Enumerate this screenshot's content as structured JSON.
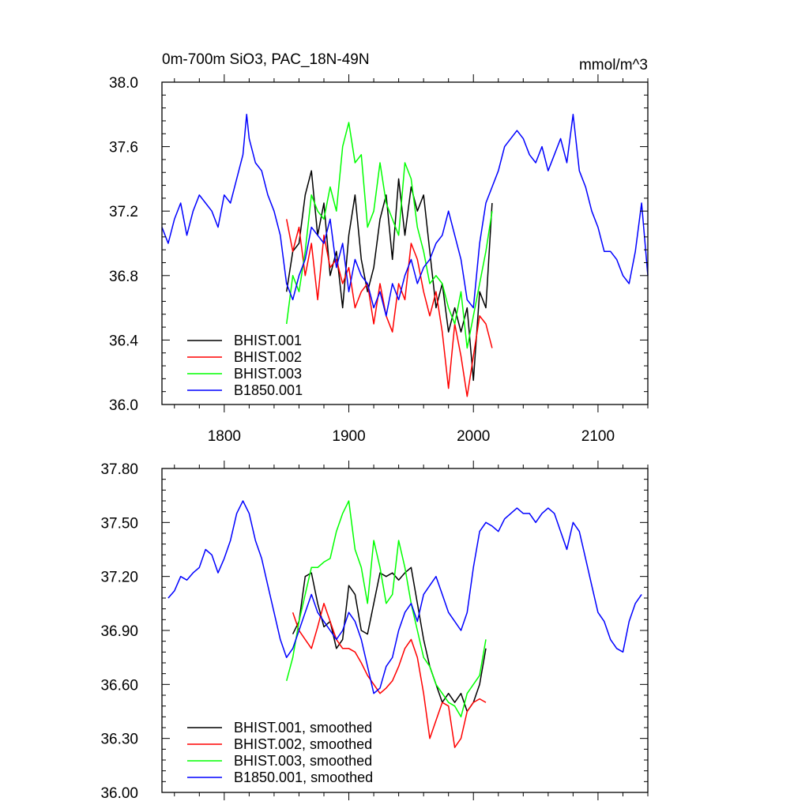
{
  "chart_data": [
    {
      "type": "line",
      "title": "0m-700m SiO3, PAC_18N-49N",
      "units_label": "mmol/m^3",
      "xlabel": "",
      "ylabel": "",
      "xlim": [
        1750,
        2140
      ],
      "ylim": [
        36.0,
        38.0
      ],
      "xticks": [
        1800,
        1900,
        2000,
        2100
      ],
      "xtick_labels": [
        "1800",
        "1900",
        "2000",
        "2100"
      ],
      "yticks": [
        36.0,
        36.4,
        36.8,
        37.2,
        37.6,
        38.0
      ],
      "ytick_labels": [
        "36.0",
        "36.4",
        "36.8",
        "37.2",
        "37.6",
        "38.0"
      ],
      "legend": "bottom-left",
      "series": [
        {
          "name": "BHIST.001",
          "color": "#000000",
          "x": [
            1850,
            1855,
            1860,
            1865,
            1870,
            1875,
            1880,
            1885,
            1890,
            1895,
            1900,
            1905,
            1910,
            1915,
            1920,
            1925,
            1930,
            1935,
            1940,
            1945,
            1950,
            1955,
            1960,
            1965,
            1970,
            1975,
            1980,
            1985,
            1990,
            1995,
            2000,
            2005,
            2010,
            2015
          ],
          "y": [
            36.7,
            36.95,
            37.0,
            37.3,
            37.45,
            37.05,
            37.25,
            36.8,
            36.95,
            36.6,
            37.05,
            37.3,
            36.9,
            36.7,
            36.85,
            37.15,
            37.3,
            36.9,
            37.4,
            37.05,
            37.35,
            37.2,
            37.3,
            36.95,
            36.6,
            36.75,
            36.45,
            36.6,
            36.45,
            36.6,
            36.15,
            36.7,
            36.6,
            37.25
          ]
        },
        {
          "name": "BHIST.002",
          "color": "#ff0000",
          "x": [
            1850,
            1855,
            1860,
            1865,
            1870,
            1875,
            1880,
            1885,
            1890,
            1895,
            1900,
            1905,
            1910,
            1915,
            1920,
            1925,
            1930,
            1935,
            1940,
            1945,
            1950,
            1955,
            1960,
            1965,
            1970,
            1975,
            1980,
            1985,
            1990,
            1995,
            2000,
            2005,
            2010,
            2015
          ],
          "y": [
            37.15,
            36.95,
            37.1,
            36.8,
            37.0,
            36.65,
            37.05,
            36.85,
            36.9,
            36.75,
            36.85,
            36.6,
            36.7,
            36.75,
            36.5,
            36.75,
            36.55,
            36.45,
            36.75,
            36.65,
            37.0,
            36.9,
            36.7,
            36.55,
            36.7,
            36.45,
            36.1,
            36.5,
            36.3,
            36.05,
            36.3,
            36.55,
            36.5,
            36.35
          ]
        },
        {
          "name": "BHIST.003",
          "color": "#00ff00",
          "x": [
            1850,
            1855,
            1860,
            1865,
            1870,
            1875,
            1880,
            1885,
            1890,
            1895,
            1900,
            1905,
            1910,
            1915,
            1920,
            1925,
            1930,
            1935,
            1940,
            1945,
            1950,
            1955,
            1960,
            1965,
            1970,
            1975,
            1980,
            1985,
            1990,
            1995,
            2000,
            2005,
            2010,
            2015
          ],
          "y": [
            36.5,
            36.8,
            36.7,
            36.95,
            37.3,
            37.2,
            37.15,
            37.35,
            37.2,
            37.6,
            37.75,
            37.5,
            37.55,
            37.1,
            37.2,
            37.5,
            37.25,
            37.15,
            37.05,
            37.5,
            37.4,
            37.1,
            36.95,
            36.75,
            36.8,
            36.75,
            36.6,
            36.5,
            36.7,
            36.35,
            36.55,
            36.75,
            36.95,
            37.2
          ]
        },
        {
          "name": "B1850.001",
          "color": "#0000ff",
          "x": [
            1750,
            1755,
            1760,
            1765,
            1770,
            1775,
            1780,
            1785,
            1790,
            1795,
            1800,
            1805,
            1810,
            1815,
            1818,
            1820,
            1825,
            1830,
            1835,
            1840,
            1845,
            1850,
            1855,
            1860,
            1865,
            1870,
            1875,
            1880,
            1885,
            1890,
            1895,
            1900,
            1905,
            1910,
            1915,
            1920,
            1925,
            1930,
            1935,
            1940,
            1945,
            1950,
            1955,
            1960,
            1965,
            1970,
            1975,
            1980,
            1985,
            1990,
            1995,
            2000,
            2005,
            2010,
            2015,
            2020,
            2025,
            2030,
            2035,
            2040,
            2045,
            2050,
            2055,
            2060,
            2065,
            2070,
            2075,
            2080,
            2085,
            2090,
            2095,
            2100,
            2105,
            2110,
            2115,
            2120,
            2125,
            2130,
            2135,
            2140
          ],
          "y": [
            37.1,
            37.0,
            37.15,
            37.25,
            37.05,
            37.2,
            37.3,
            37.25,
            37.2,
            37.1,
            37.3,
            37.25,
            37.4,
            37.55,
            37.8,
            37.65,
            37.5,
            37.45,
            37.3,
            37.2,
            37.05,
            36.75,
            36.65,
            36.8,
            36.9,
            37.1,
            37.05,
            37.0,
            37.15,
            36.85,
            37.0,
            36.7,
            36.9,
            36.8,
            36.75,
            36.6,
            36.7,
            36.55,
            36.75,
            36.65,
            36.8,
            36.9,
            36.75,
            36.85,
            36.9,
            37.0,
            37.05,
            37.2,
            37.05,
            36.9,
            36.65,
            36.6,
            37.0,
            37.25,
            37.35,
            37.45,
            37.6,
            37.65,
            37.7,
            37.65,
            37.55,
            37.5,
            37.6,
            37.45,
            37.55,
            37.65,
            37.5,
            37.8,
            37.45,
            37.35,
            37.2,
            37.1,
            36.95,
            36.95,
            36.9,
            36.8,
            36.75,
            36.95,
            37.25,
            36.8
          ]
        }
      ]
    },
    {
      "type": "line",
      "title": "",
      "xlabel": "",
      "ylabel": "",
      "xlim": [
        1750,
        2140
      ],
      "ylim": [
        36.0,
        37.8
      ],
      "xticks": [
        1800,
        1900,
        2000,
        2100
      ],
      "yticks": [
        36.0,
        36.3,
        36.6,
        36.9,
        37.2,
        37.5,
        37.8
      ],
      "ytick_labels": [
        "36.00",
        "36.30",
        "36.60",
        "36.90",
        "37.20",
        "37.50",
        "37.80"
      ],
      "legend": "bottom-left",
      "series": [
        {
          "name": "BHIST.001, smoothed",
          "color": "#000000",
          "x": [
            1855,
            1860,
            1865,
            1870,
            1875,
            1880,
            1885,
            1890,
            1895,
            1900,
            1905,
            1910,
            1915,
            1920,
            1925,
            1930,
            1935,
            1940,
            1945,
            1950,
            1955,
            1960,
            1965,
            1970,
            1975,
            1980,
            1985,
            1990,
            1995,
            2000,
            2005,
            2010
          ],
          "y": [
            36.88,
            36.95,
            37.2,
            37.22,
            37.05,
            36.92,
            36.95,
            36.8,
            36.85,
            37.15,
            37.1,
            36.9,
            36.88,
            37.05,
            37.22,
            37.2,
            37.22,
            37.18,
            37.22,
            37.25,
            37.05,
            36.85,
            36.7,
            36.6,
            36.5,
            36.55,
            36.5,
            36.55,
            36.45,
            36.5,
            36.6,
            36.8
          ]
        },
        {
          "name": "BHIST.002, smoothed",
          "color": "#ff0000",
          "x": [
            1855,
            1860,
            1865,
            1870,
            1875,
            1880,
            1885,
            1890,
            1895,
            1900,
            1905,
            1910,
            1915,
            1920,
            1925,
            1930,
            1935,
            1940,
            1945,
            1950,
            1955,
            1960,
            1965,
            1970,
            1975,
            1980,
            1985,
            1990,
            1995,
            2000,
            2005,
            2010
          ],
          "y": [
            37.0,
            36.9,
            36.85,
            36.8,
            36.92,
            37.05,
            36.95,
            36.85,
            36.8,
            36.8,
            36.78,
            36.72,
            36.65,
            36.6,
            36.55,
            36.58,
            36.62,
            36.7,
            36.8,
            36.85,
            36.75,
            36.55,
            36.3,
            36.4,
            36.5,
            36.48,
            36.25,
            36.3,
            36.45,
            36.5,
            36.52,
            36.5
          ]
        },
        {
          "name": "BHIST.003, smoothed",
          "color": "#00ff00",
          "x": [
            1850,
            1855,
            1860,
            1865,
            1870,
            1875,
            1880,
            1885,
            1890,
            1895,
            1900,
            1905,
            1910,
            1915,
            1920,
            1925,
            1930,
            1935,
            1940,
            1945,
            1950,
            1955,
            1960,
            1965,
            1970,
            1975,
            1980,
            1985,
            1990,
            1995,
            2000,
            2005,
            2010
          ],
          "y": [
            36.62,
            36.75,
            36.95,
            37.1,
            37.25,
            37.25,
            37.28,
            37.3,
            37.45,
            37.55,
            37.62,
            37.35,
            37.25,
            37.05,
            37.4,
            37.25,
            37.05,
            37.1,
            37.4,
            37.25,
            37.05,
            36.9,
            36.75,
            36.7,
            36.6,
            36.55,
            36.5,
            36.48,
            36.42,
            36.55,
            36.6,
            36.65,
            36.85
          ]
        },
        {
          "name": "B1850.001, smoothed",
          "color": "#0000ff",
          "x": [
            1755,
            1760,
            1765,
            1770,
            1775,
            1780,
            1785,
            1790,
            1795,
            1800,
            1805,
            1810,
            1815,
            1820,
            1825,
            1830,
            1835,
            1840,
            1845,
            1850,
            1855,
            1860,
            1865,
            1870,
            1875,
            1880,
            1885,
            1890,
            1895,
            1900,
            1905,
            1910,
            1915,
            1920,
            1925,
            1930,
            1935,
            1940,
            1945,
            1950,
            1955,
            1960,
            1965,
            1970,
            1975,
            1980,
            1985,
            1990,
            1995,
            2000,
            2005,
            2010,
            2015,
            2020,
            2025,
            2030,
            2035,
            2040,
            2045,
            2050,
            2055,
            2060,
            2065,
            2070,
            2075,
            2080,
            2085,
            2090,
            2095,
            2100,
            2105,
            2110,
            2115,
            2120,
            2125,
            2130,
            2135
          ],
          "y": [
            37.08,
            37.12,
            37.2,
            37.18,
            37.22,
            37.25,
            37.35,
            37.32,
            37.22,
            37.3,
            37.4,
            37.55,
            37.62,
            37.55,
            37.4,
            37.3,
            37.15,
            37.0,
            36.85,
            36.75,
            36.8,
            36.9,
            37.0,
            37.1,
            37.0,
            36.95,
            36.9,
            36.85,
            36.9,
            37.0,
            36.95,
            36.85,
            36.7,
            36.55,
            36.58,
            36.7,
            36.75,
            36.9,
            37.0,
            37.05,
            36.95,
            37.1,
            37.15,
            37.2,
            37.1,
            37.0,
            36.95,
            36.9,
            37.0,
            37.25,
            37.45,
            37.5,
            37.48,
            37.45,
            37.52,
            37.55,
            37.58,
            37.55,
            37.55,
            37.5,
            37.55,
            37.58,
            37.55,
            37.45,
            37.35,
            37.5,
            37.45,
            37.3,
            37.15,
            37.0,
            36.95,
            36.85,
            36.8,
            36.78,
            36.95,
            37.05,
            37.1
          ]
        }
      ]
    }
  ]
}
